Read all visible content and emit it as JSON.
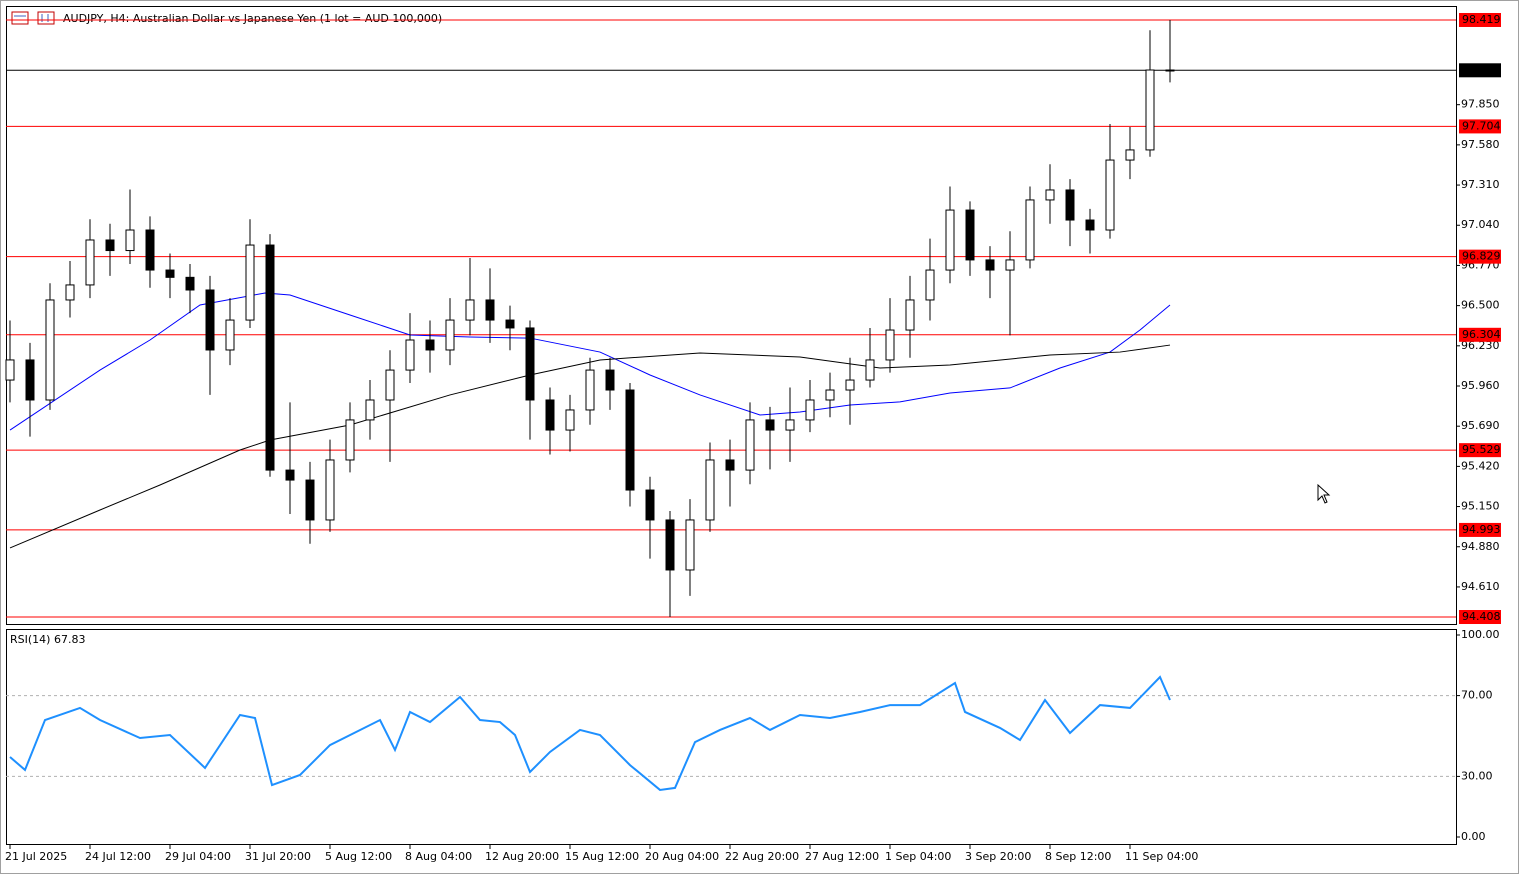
{
  "chart_data": [
    {
      "type": "candlestick",
      "title": "AUDJPY, H4:  Australian Dollar vs Japanese Yen (1 lot = AUD 100,000)",
      "categories": [
        "21 Jul 2025",
        null,
        null,
        null,
        "24 Jul 12:00",
        null,
        null,
        null,
        "29 Jul 04:00",
        null,
        null,
        null,
        "31 Jul 20:00",
        null,
        null,
        null,
        "5 Aug 12:00",
        null,
        null,
        null,
        "8 Aug 04:00",
        null,
        null,
        null,
        "12 Aug 20:00",
        null,
        null,
        null,
        "15 Aug 12:00",
        null,
        null,
        null,
        "20 Aug 04:00",
        null,
        null,
        null,
        "22 Aug 20:00",
        null,
        null,
        null,
        "27 Aug 12:00",
        null,
        null,
        null,
        "1 Sep 04:00",
        null,
        null,
        null,
        "3 Sep 20:00",
        null,
        null,
        null,
        "8 Sep 12:00",
        null,
        null,
        null,
        "11 Sep 04:00",
        null,
        null
      ],
      "open": [
        96.0,
        96.135,
        95.866,
        96.538,
        96.639,
        96.941,
        96.87,
        97.008,
        96.739,
        96.69,
        96.605,
        96.202,
        96.403,
        96.907,
        95.395,
        95.328,
        95.06,
        95.463,
        95.732,
        95.866,
        96.067,
        96.269,
        96.202,
        96.403,
        96.538,
        96.403,
        96.35,
        95.866,
        95.664,
        95.799,
        96.067,
        95.933,
        95.261,
        95.06,
        94.724,
        95.06,
        95.463,
        95.395,
        95.732,
        95.664,
        95.732,
        95.866,
        95.933,
        96.0,
        96.135,
        96.336,
        96.538,
        96.739,
        97.142,
        96.807,
        96.739,
        96.807,
        97.21,
        97.277,
        97.075,
        97.008,
        97.478,
        97.546,
        98.083
      ],
      "high": [
        96.4,
        96.25,
        96.65,
        96.8,
        97.08,
        97.05,
        97.28,
        97.1,
        96.85,
        96.78,
        96.7,
        96.55,
        97.08,
        96.98,
        95.85,
        95.45,
        95.6,
        95.85,
        96.0,
        96.2,
        96.45,
        96.4,
        96.55,
        96.82,
        96.75,
        96.5,
        96.4,
        95.95,
        95.9,
        96.15,
        96.15,
        95.98,
        95.35,
        95.12,
        95.2,
        95.58,
        95.6,
        95.85,
        95.82,
        95.95,
        96.0,
        96.05,
        96.15,
        96.35,
        96.55,
        96.7,
        96.95,
        97.3,
        97.2,
        96.9,
        97.0,
        97.3,
        97.45,
        97.35,
        97.15,
        97.72,
        97.7,
        98.35,
        98.419
      ],
      "low": [
        95.85,
        95.62,
        95.8,
        96.42,
        96.55,
        96.7,
        96.78,
        96.62,
        96.55,
        96.45,
        95.9,
        96.1,
        96.35,
        95.35,
        95.1,
        94.9,
        94.98,
        95.38,
        95.6,
        95.45,
        95.98,
        96.05,
        96.1,
        96.3,
        96.25,
        96.2,
        95.6,
        95.5,
        95.52,
        95.7,
        95.8,
        95.15,
        94.8,
        94.408,
        94.55,
        94.98,
        95.15,
        95.3,
        95.4,
        95.45,
        95.65,
        95.75,
        95.7,
        95.95,
        96.05,
        96.15,
        96.4,
        96.65,
        96.7,
        96.55,
        96.3,
        96.75,
        97.05,
        96.9,
        96.85,
        96.95,
        97.35,
        97.5,
        98.0
      ],
      "close": [
        96.135,
        95.866,
        96.538,
        96.639,
        96.941,
        96.87,
        97.008,
        96.739,
        96.69,
        96.605,
        96.202,
        96.403,
        96.907,
        95.395,
        95.328,
        95.06,
        95.463,
        95.732,
        95.866,
        96.067,
        96.269,
        96.202,
        96.403,
        96.538,
        96.403,
        96.35,
        95.866,
        95.664,
        95.799,
        96.067,
        95.933,
        95.261,
        95.06,
        94.724,
        95.06,
        95.463,
        95.395,
        95.732,
        95.664,
        95.732,
        95.866,
        95.933,
        96.0,
        96.135,
        96.336,
        96.538,
        96.739,
        97.142,
        96.807,
        96.739,
        96.807,
        97.21,
        97.277,
        97.075,
        97.008,
        97.478,
        97.546,
        98.083,
        98.081
      ],
      "up_color": "#ffffff",
      "down_color": "#000000",
      "outline_color": "#000000",
      "ylim": [
        94.361,
        98.513
      ],
      "yticks": [
        {
          "value": 94.61,
          "label": "94.610"
        },
        {
          "value": 94.88,
          "label": "94.880"
        },
        {
          "value": 95.15,
          "label": "95.150"
        },
        {
          "value": 95.42,
          "label": "95.420"
        },
        {
          "value": 95.69,
          "label": "95.690"
        },
        {
          "value": 95.96,
          "label": "95.960"
        },
        {
          "value": 96.23,
          "label": "96.230"
        },
        {
          "value": 96.5,
          "label": "96.500"
        },
        {
          "value": 96.77,
          "label": "96.770"
        },
        {
          "value": 97.04,
          "label": "97.040"
        },
        {
          "value": 97.31,
          "label": "97.310"
        },
        {
          "value": 97.58,
          "label": "97.580"
        },
        {
          "value": 97.85,
          "label": "97.850"
        }
      ],
      "levels": [
        {
          "value": 98.419,
          "color": "#ff0000"
        },
        {
          "value": 98.081,
          "color": "#000000"
        },
        {
          "value": 97.704,
          "color": "#ff0000"
        },
        {
          "value": 96.829,
          "color": "#ff0000"
        },
        {
          "value": 96.304,
          "color": "#ff0000"
        },
        {
          "value": 95.529,
          "color": "#ff0000"
        },
        {
          "value": 94.993,
          "color": "#ff0000"
        },
        {
          "value": 94.408,
          "color": "#ff0000"
        }
      ],
      "moving_averages": [
        {
          "color": "#0000ff",
          "x": [
            0,
            4.5,
            7,
            9.5,
            12.75,
            14,
            17,
            20,
            23,
            26,
            29.5,
            32,
            34.5,
            37.5,
            39.5,
            42,
            44.5,
            47,
            50,
            52.5,
            55,
            56.5,
            58
          ],
          "values": [
            95.664,
            96.067,
            96.269,
            96.504,
            96.585,
            96.571,
            96.437,
            96.303,
            96.289,
            96.282,
            96.188,
            96.034,
            95.9,
            95.765,
            95.785,
            95.832,
            95.853,
            95.913,
            95.947,
            96.081,
            96.188,
            96.336,
            96.504
          ]
        },
        {
          "color": "#000000",
          "x": [
            0,
            4.5,
            7.5,
            11.5,
            13,
            17,
            22,
            26,
            29.5,
            34.5,
            39.5,
            43.5,
            47,
            52,
            55.5,
            58
          ],
          "values": [
            94.872,
            95.127,
            95.295,
            95.53,
            95.597,
            95.698,
            95.9,
            96.034,
            96.135,
            96.182,
            96.155,
            96.081,
            96.101,
            96.168,
            96.188,
            96.235
          ]
        }
      ]
    },
    {
      "type": "line",
      "title": "RSI(14) 67.83",
      "color": "#1e90ff",
      "x": [
        0,
        0.75,
        1.75,
        3.5,
        4.5,
        6.5,
        8,
        9.75,
        11.5,
        12.25,
        13.1,
        14.5,
        16,
        18.5,
        19.25,
        20,
        21,
        22.5,
        23.5,
        24.5,
        25.25,
        26,
        27,
        28.5,
        29.5,
        31,
        32.5,
        33.25,
        34.25,
        35.5,
        37,
        38,
        39.5,
        41,
        42.5,
        44,
        45.5,
        47.25,
        47.75,
        49.5,
        50.5,
        51.75,
        53,
        54.5,
        56,
        57.5,
        58
      ],
      "values": [
        39.6,
        33.2,
        57.9,
        63.9,
        57.9,
        49.0,
        50.5,
        34.2,
        60.4,
        58.9,
        25.7,
        30.7,
        45.5,
        57.9,
        43.1,
        61.9,
        56.9,
        69.3,
        57.9,
        56.9,
        50.5,
        32.2,
        42.1,
        53.0,
        50.5,
        35.6,
        23.3,
        24.3,
        47.0,
        53.0,
        58.9,
        53.0,
        60.4,
        58.9,
        61.9,
        65.3,
        65.3,
        76.2,
        61.9,
        54.0,
        48.0,
        67.8,
        51.5,
        65.3,
        63.9,
        79.2,
        67.83
      ],
      "ylim": [
        -3.96,
        102.97
      ],
      "yticks": [
        {
          "value": 0,
          "label": "0.00"
        },
        {
          "value": 30,
          "label": "30.00"
        },
        {
          "value": 70,
          "label": "70.00"
        },
        {
          "value": 100,
          "label": "100.00"
        }
      ],
      "levels": [
        70,
        30
      ]
    }
  ]
}
